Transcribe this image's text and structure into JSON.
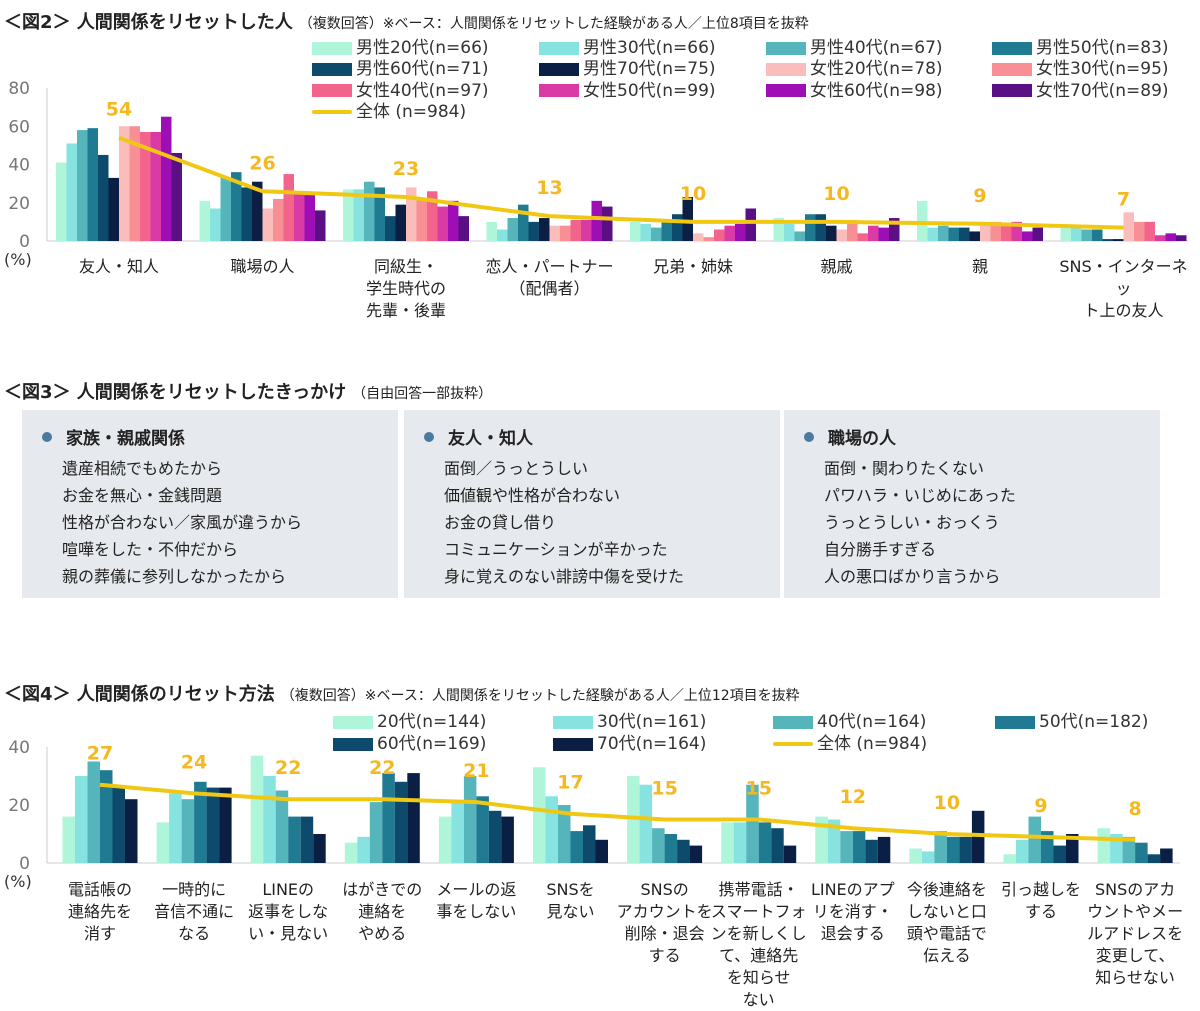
{
  "fig2": {
    "title": "＜図2＞ 人間関係をリセットした人",
    "note": "（複数回答）※ベース：人間関係をリセットした経験がある人／上位8項目を抜粋"
  },
  "fig3": {
    "title": "＜図3＞ 人間関係をリセットしたきっかけ",
    "note": "（自由回答一部抜粋）",
    "boxes": [
      {
        "heading": "家族・親戚関係",
        "items": [
          "遺産相続でもめたから",
          "お金を無心・金銭問題",
          "性格が合わない／家風が違うから",
          "喧嘩をした・不仲だから",
          "親の葬儀に参列しなかったから"
        ]
      },
      {
        "heading": "友人・知人",
        "items": [
          "面倒／うっとうしい",
          "価値観や性格が合わない",
          "お金の貸し借り",
          "コミュニケーションが辛かった",
          "身に覚えのない誹謗中傷を受けた"
        ]
      },
      {
        "heading": "職場の人",
        "items": [
          "面倒・関わりたくない",
          "パワハラ・いじめにあった",
          "うっとうしい・おっくう",
          "自分勝手すぎる",
          "人の悪口ばかり言うから"
        ]
      }
    ]
  },
  "fig4": {
    "title": "＜図4＞ 人間関係のリセット方法",
    "note": "（複数回答）※ベース：人間関係をリセットした経験がある人／上位12項目を抜粋"
  },
  "chart_data": [
    {
      "type": "bar",
      "unit_label": "(%)",
      "ylim": [
        0,
        80
      ],
      "yticks": [
        "0",
        "20",
        "40",
        "60",
        "80"
      ],
      "legend": "top-right",
      "categories": [
        "友人・知人",
        "職場の人",
        "同級生・\n学生時代の\n先輩・後輩",
        "恋人・パートナー\n（配偶者）",
        "兄弟・姉妹",
        "親戚",
        "親",
        "SNS・インターネッ\nト上の友人"
      ],
      "series": [
        {
          "name": "男性20代(n=66)",
          "color": "#aef5da",
          "values": [
            41,
            21,
            27,
            10,
            10,
            12,
            21,
            7
          ]
        },
        {
          "name": "男性30代(n=66)",
          "color": "#86e3df",
          "values": [
            51,
            17,
            27,
            6,
            9,
            9,
            7,
            7
          ]
        },
        {
          "name": "男性40代(n=67)",
          "color": "#55b5bb",
          "values": [
            58,
            33,
            31,
            12,
            7,
            5,
            8,
            6
          ]
        },
        {
          "name": "男性50代(n=83)",
          "color": "#1f7a92",
          "values": [
            59,
            36,
            28,
            19,
            10,
            14,
            7,
            6
          ]
        },
        {
          "name": "男性60代(n=71)",
          "color": "#0e4a6b",
          "values": [
            45,
            28,
            13,
            10,
            14,
            14,
            7,
            1
          ]
        },
        {
          "name": "男性70代(n=75)",
          "color": "#0b1f45",
          "values": [
            33,
            31,
            19,
            12,
            23,
            8,
            5,
            1
          ]
        },
        {
          "name": "女性20代(n=78)",
          "color": "#fbbcbc",
          "values": [
            60,
            17,
            28,
            8,
            4,
            6,
            8,
            15
          ]
        },
        {
          "name": "女性30代(n=95)",
          "color": "#f88f95",
          "values": [
            60,
            22,
            22,
            8,
            2,
            11,
            10,
            10
          ]
        },
        {
          "name": "女性40代(n=97)",
          "color": "#f2648c",
          "values": [
            57,
            35,
            26,
            11,
            6,
            4,
            9,
            10
          ]
        },
        {
          "name": "女性50代(n=99)",
          "color": "#d93aa6",
          "values": [
            57,
            26,
            18,
            11,
            8,
            8,
            10,
            3
          ]
        },
        {
          "name": "女性60代(n=98)",
          "color": "#9d0fb5",
          "values": [
            65,
            24,
            21,
            21,
            9,
            7,
            5,
            4
          ]
        },
        {
          "name": "女性70代(n=89)",
          "color": "#5a0f85",
          "values": [
            46,
            16,
            13,
            18,
            17,
            12,
            7,
            3
          ]
        }
      ],
      "line": {
        "name": "全体 (n=984)",
        "color": "#f0c814",
        "label_color": "#f5b821",
        "values": [
          54,
          26,
          23,
          13,
          10,
          10,
          9,
          7
        ]
      }
    },
    {
      "type": "bar",
      "unit_label": "(%)",
      "ylim": [
        0,
        40
      ],
      "yticks": [
        "0",
        "20",
        "40"
      ],
      "legend": "top-right",
      "categories": [
        "電話帳の\n連絡先を\n消す",
        "一時的に\n音信不通に\nなる",
        "LINEの\n返事をしな\nい・見ない",
        "はがきでの\n連絡を\nやめる",
        "メールの返\n事をしない",
        "SNSを\n見ない",
        "SNSの\nアカウントを\n削除・退会\nする",
        "携帯電話・\nスマートフォ\nンを新しくし\nて、連絡先\nを知らせ\nない",
        "LINEのアプ\nリを消す・\n退会する",
        "今後連絡を\nしないと口\n頭や電話で\n伝える",
        "引っ越しを\nする",
        "SNSのアカ\nウントやメー\nルアドレスを\n変更して、\n知らせない"
      ],
      "series": [
        {
          "name": "20代(n=144)",
          "color": "#aef5da",
          "values": [
            16,
            14,
            37,
            7,
            16,
            33,
            30,
            14,
            16,
            5,
            3,
            12
          ]
        },
        {
          "name": "30代(n=161)",
          "color": "#86e3df",
          "values": [
            30,
            24,
            30,
            9,
            21,
            23,
            27,
            14,
            15,
            4,
            8,
            10
          ]
        },
        {
          "name": "40代(n=164)",
          "color": "#55b5bb",
          "values": [
            35,
            22,
            25,
            21,
            30,
            20,
            12,
            27,
            11,
            11,
            16,
            9
          ]
        },
        {
          "name": "50代(n=182)",
          "color": "#1f7a92",
          "values": [
            32,
            28,
            16,
            31,
            23,
            11,
            10,
            14,
            11,
            9,
            11,
            7
          ]
        },
        {
          "name": "60代(n=169)",
          "color": "#0e4a6b",
          "values": [
            26,
            26,
            16,
            28,
            18,
            13,
            8,
            12,
            8,
            9,
            6,
            3
          ]
        },
        {
          "name": "70代(n=164)",
          "color": "#0b1f45",
          "values": [
            22,
            26,
            10,
            31,
            16,
            8,
            6,
            6,
            9,
            18,
            10,
            5
          ]
        }
      ],
      "line": {
        "name": "全体 (n=984)",
        "color": "#f0c814",
        "label_color": "#f5b821",
        "values": [
          27,
          24,
          22,
          22,
          21,
          17,
          15,
          15,
          12,
          10,
          9,
          8
        ]
      }
    }
  ]
}
